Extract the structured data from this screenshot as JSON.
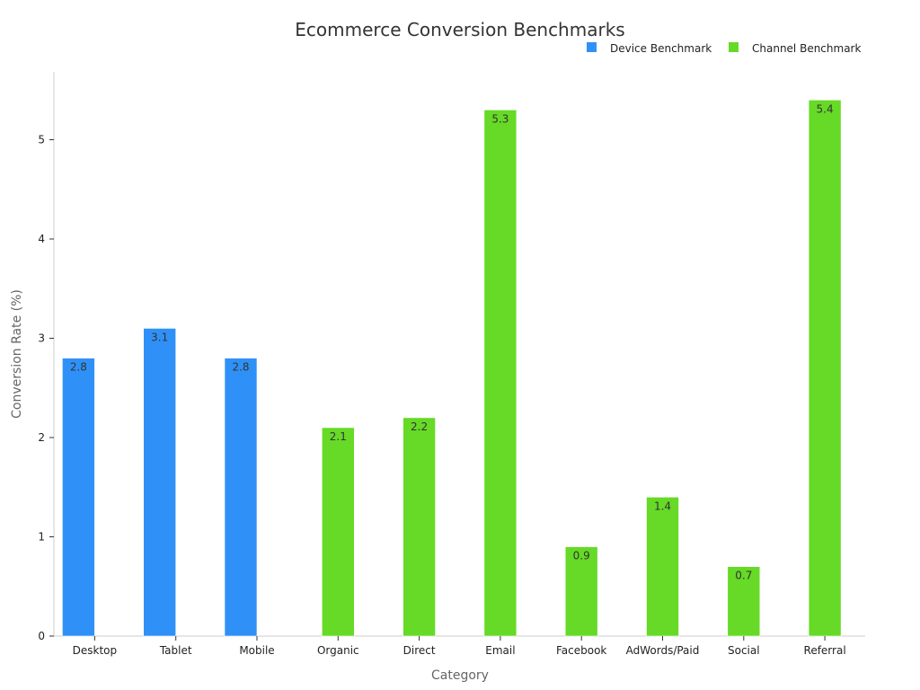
{
  "chart_data": {
    "type": "bar",
    "title": "Ecommerce Conversion Benchmarks",
    "xlabel": "Category",
    "ylabel": "Conversion Rate (%)",
    "ylim": [
      0,
      5.68
    ],
    "yticks": [
      0,
      1,
      2,
      3,
      4,
      5
    ],
    "grid": false,
    "legend_position": "top-right",
    "categories": [
      "Desktop",
      "Tablet",
      "Mobile",
      "Organic",
      "Direct",
      "Email",
      "Facebook",
      "AdWords/Paid",
      "Social",
      "Referral"
    ],
    "series": [
      {
        "name": "Device Benchmark",
        "color": "#2f91f7",
        "values": [
          2.8,
          3.1,
          2.8,
          null,
          null,
          null,
          null,
          null,
          null,
          null
        ],
        "labels": [
          "2.8",
          "3.1",
          "2.8",
          "",
          "",
          "",
          "",
          "",
          "",
          ""
        ]
      },
      {
        "name": "Channel Benchmark",
        "color": "#66da26",
        "values": [
          null,
          null,
          null,
          2.1,
          2.2,
          5.3,
          0.9,
          1.4,
          0.7,
          5.4
        ],
        "labels": [
          "",
          "",
          "",
          "2.1",
          "2.2",
          "5.3",
          "0.9",
          "1.4",
          "0.7",
          "5.4"
        ]
      }
    ]
  }
}
